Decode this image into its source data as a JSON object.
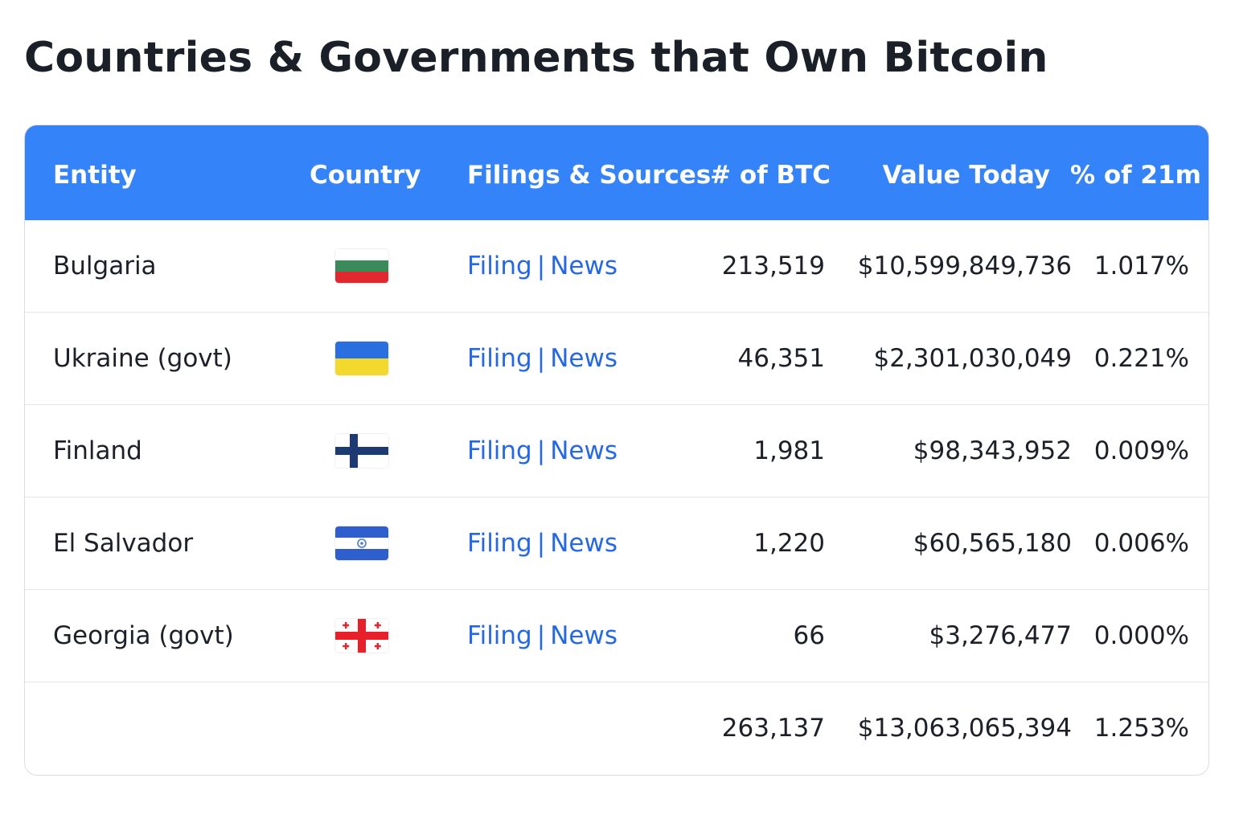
{
  "title": "Countries & Governments that Own Bitcoin",
  "table": {
    "headers": {
      "entity": "Entity",
      "country": "Country",
      "filings": "Filings & Sources",
      "btc": "# of BTC",
      "value": "Value Today",
      "pct": "% of 21m"
    },
    "rows": [
      {
        "entity": "Bulgaria",
        "flag": "bulgaria-flag",
        "filing": "Filing",
        "separator": "|",
        "news": "News",
        "btc": "213,519",
        "value": "$10,599,849,736",
        "pct": "1.017%"
      },
      {
        "entity": "Ukraine (govt)",
        "flag": "ukraine-flag",
        "filing": "Filing",
        "separator": "|",
        "news": "News",
        "btc": "46,351",
        "value": "$2,301,030,049",
        "pct": "0.221%"
      },
      {
        "entity": "Finland",
        "flag": "finland-flag",
        "filing": "Filing",
        "separator": "|",
        "news": "News",
        "btc": "1,981",
        "value": "$98,343,952",
        "pct": "0.009%"
      },
      {
        "entity": "El Salvador",
        "flag": "el-salvador-flag",
        "filing": "Filing",
        "separator": "|",
        "news": "News",
        "btc": "1,220",
        "value": "$60,565,180",
        "pct": "0.006%"
      },
      {
        "entity": "Georgia (govt)",
        "flag": "georgia-flag",
        "filing": "Filing",
        "separator": "|",
        "news": "News",
        "btc": "66",
        "value": "$3,276,477",
        "pct": "0.000%"
      }
    ],
    "totals": {
      "btc": "263,137",
      "value": "$13,063,065,394",
      "pct": "1.253%"
    }
  },
  "colors": {
    "header_bg": "#3583f8",
    "link": "#2568e6",
    "text": "#1d2028"
  }
}
